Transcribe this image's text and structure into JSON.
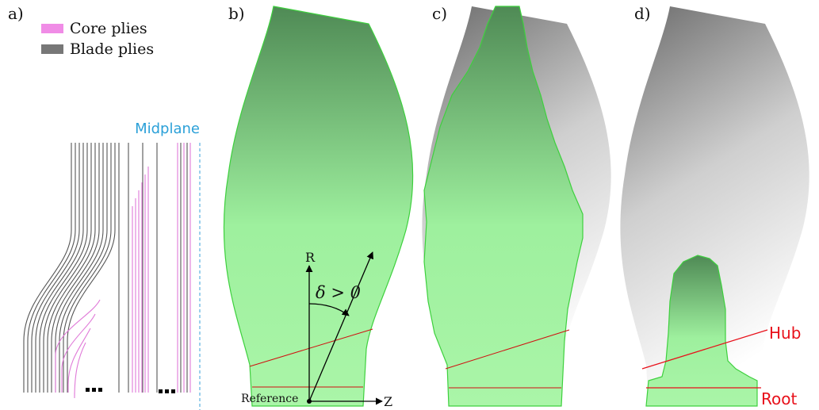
{
  "panels": [
    {
      "label": "a)"
    },
    {
      "label": "b)"
    },
    {
      "label": "c)"
    },
    {
      "label": "d)"
    }
  ],
  "legend": [
    {
      "label": "Core plies"
    },
    {
      "label": "Blade plies"
    }
  ],
  "annotations": {
    "midplane": "Midplane",
    "r_axis": "R",
    "z_axis": "Z",
    "angle": "δ > 0",
    "reference": "Reference",
    "hub": "Hub",
    "root": "Root"
  }
}
